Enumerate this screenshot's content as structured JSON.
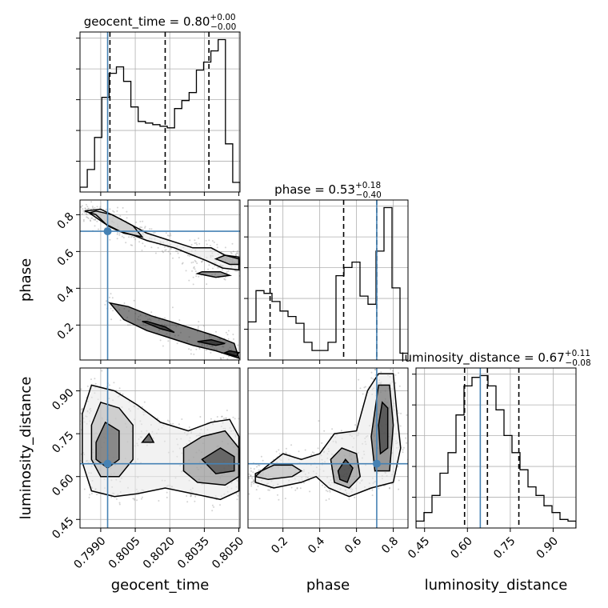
{
  "chart_data": {
    "type": "corner",
    "parameters": [
      "geocent_time",
      "phase",
      "luminosity_distance"
    ],
    "truth": {
      "geocent_time": 0.7993,
      "phase": 0.71,
      "luminosity_distance": 0.645
    },
    "truth_color": "#4682b4",
    "ranges": {
      "geocent_time": [
        0.7981,
        0.80505
      ],
      "phase": [
        0.01,
        0.88
      ],
      "luminosity_distance": [
        0.42,
        0.98
      ]
    },
    "ticks": {
      "geocent_time": {
        "values": [
          0.799,
          0.8005,
          0.802,
          0.8035,
          0.805
        ],
        "labels": [
          "0.7990",
          "0.8005",
          "0.8020",
          "0.8035",
          "0.8050"
        ]
      },
      "phase": {
        "values": [
          0.2,
          0.4,
          0.6,
          0.8
        ],
        "labels": [
          "0.2",
          "0.4",
          "0.6",
          "0.8"
        ]
      },
      "luminosity_distance": {
        "values": [
          0.45,
          0.6,
          0.75,
          0.9
        ],
        "labels": [
          "0.45",
          "0.60",
          "0.75",
          "0.90"
        ]
      }
    },
    "marginals": [
      {
        "parameter": "geocent_time",
        "title": {
          "text": "geocent_time = 0.80",
          "sup": "+0.00",
          "sub": "−0.00"
        },
        "quantiles": [
          0.7994,
          0.8018,
          0.8037
        ],
        "hist": [
          0.3,
          1.4,
          3.4,
          5.9,
          7.4,
          7.8,
          6.9,
          5.3,
          4.4,
          4.3,
          4.2,
          4.1,
          4.0,
          5.2,
          5.7,
          6.2,
          7.6,
          8.1,
          8.8,
          9.5,
          3.0,
          0.6
        ]
      },
      {
        "parameter": "phase",
        "title": {
          "text": "phase = 0.53",
          "sup": "+0.18",
          "sub": "−0.40"
        },
        "quantiles": [
          0.13,
          0.53,
          0.71
        ],
        "hist": [
          2.8,
          5.1,
          4.9,
          4.3,
          3.6,
          3.2,
          2.7,
          1.3,
          0.7,
          0.7,
          1.3,
          6.2,
          6.8,
          7.2,
          4.7,
          4.1,
          8.0,
          11.2,
          5.3,
          0.5
        ]
      },
      {
        "parameter": "luminosity_distance",
        "title": {
          "text": "luminosity_distance = 0.67",
          "sup": "+0.11",
          "sub": "−0.08"
        },
        "quantiles": [
          0.59,
          0.67,
          0.78
        ],
        "hist": [
          0.4,
          0.9,
          1.9,
          3.2,
          4.4,
          6.6,
          8.3,
          8.8,
          8.9,
          8.3,
          6.9,
          5.4,
          4.4,
          3.4,
          2.4,
          1.9,
          1.3,
          0.9,
          0.5,
          0.4
        ]
      }
    ],
    "joint": [
      {
        "x": "geocent_time",
        "y": "phase",
        "contours": [
          [
            [
              0.7983,
              0.82
            ],
            [
              0.7988,
              0.8
            ],
            [
              0.7993,
              0.74
            ],
            [
              0.7998,
              0.71
            ],
            [
              0.8004,
              0.69
            ],
            [
              0.801,
              0.66
            ],
            [
              0.8016,
              0.64
            ],
            [
              0.8022,
              0.62
            ],
            [
              0.803,
              0.58
            ],
            [
              0.8036,
              0.55
            ],
            [
              0.8043,
              0.51
            ],
            [
              0.805,
              0.5
            ],
            [
              0.805,
              0.56
            ],
            [
              0.8044,
              0.58
            ],
            [
              0.8038,
              0.62
            ],
            [
              0.803,
              0.62
            ],
            [
              0.802,
              0.66
            ],
            [
              0.801,
              0.7
            ],
            [
              0.7998,
              0.78
            ],
            [
              0.799,
              0.83
            ],
            [
              0.7983,
              0.82
            ]
          ],
          [
            [
              0.7985,
              0.81
            ],
            [
              0.7992,
              0.75
            ],
            [
              0.8,
              0.7
            ],
            [
              0.8008,
              0.68
            ],
            [
              0.8004,
              0.74
            ],
            [
              0.7995,
              0.8
            ],
            [
              0.7988,
              0.82
            ],
            [
              0.7985,
              0.81
            ]
          ],
          [
            [
              0.804,
              0.56
            ],
            [
              0.8046,
              0.53
            ],
            [
              0.805,
              0.53
            ],
            [
              0.805,
              0.57
            ],
            [
              0.8044,
              0.58
            ],
            [
              0.804,
              0.56
            ]
          ],
          [
            [
              0.8032,
              0.48
            ],
            [
              0.804,
              0.46
            ],
            [
              0.8046,
              0.47
            ],
            [
              0.8042,
              0.49
            ],
            [
              0.8034,
              0.49
            ],
            [
              0.8032,
              0.48
            ]
          ],
          [
            [
              0.7994,
              0.32
            ],
            [
              0.8002,
              0.3
            ],
            [
              0.8012,
              0.25
            ],
            [
              0.802,
              0.22
            ],
            [
              0.803,
              0.18
            ],
            [
              0.804,
              0.14
            ],
            [
              0.8048,
              0.1
            ],
            [
              0.805,
              0.02
            ],
            [
              0.804,
              0.06
            ],
            [
              0.803,
              0.09
            ],
            [
              0.802,
              0.13
            ],
            [
              0.801,
              0.17
            ],
            [
              0.8,
              0.23
            ],
            [
              0.7994,
              0.32
            ]
          ],
          [
            [
              0.8008,
              0.22
            ],
            [
              0.8016,
              0.18
            ],
            [
              0.8022,
              0.16
            ],
            [
              0.8018,
              0.19
            ],
            [
              0.801,
              0.22
            ],
            [
              0.8008,
              0.22
            ]
          ],
          [
            [
              0.8032,
              0.11
            ],
            [
              0.804,
              0.09
            ],
            [
              0.8044,
              0.1
            ],
            [
              0.8038,
              0.12
            ],
            [
              0.8032,
              0.11
            ]
          ],
          [
            [
              0.8044,
              0.05
            ],
            [
              0.8049,
              0.03
            ],
            [
              0.805,
              0.05
            ],
            [
              0.8046,
              0.06
            ],
            [
              0.8044,
              0.05
            ]
          ]
        ]
      },
      {
        "x": "geocent_time",
        "y": "luminosity_distance",
        "contours": [
          [
            [
              0.7982,
              0.82
            ],
            [
              0.7986,
              0.92
            ],
            [
              0.7996,
              0.9
            ],
            [
              0.8006,
              0.85
            ],
            [
              0.8016,
              0.79
            ],
            [
              0.8028,
              0.76
            ],
            [
              0.8038,
              0.79
            ],
            [
              0.8046,
              0.8
            ],
            [
              0.805,
              0.74
            ],
            [
              0.805,
              0.55
            ],
            [
              0.8042,
              0.52
            ],
            [
              0.803,
              0.54
            ],
            [
              0.8018,
              0.56
            ],
            [
              0.8006,
              0.54
            ],
            [
              0.7996,
              0.53
            ],
            [
              0.7986,
              0.55
            ],
            [
              0.7982,
              0.65
            ],
            [
              0.7982,
              0.82
            ]
          ],
          [
            [
              0.7986,
              0.78
            ],
            [
              0.799,
              0.86
            ],
            [
              0.7998,
              0.84
            ],
            [
              0.8004,
              0.78
            ],
            [
              0.8004,
              0.66
            ],
            [
              0.7998,
              0.6
            ],
            [
              0.799,
              0.6
            ],
            [
              0.7986,
              0.66
            ],
            [
              0.7986,
              0.78
            ]
          ],
          [
            [
              0.8026,
              0.7
            ],
            [
              0.8034,
              0.74
            ],
            [
              0.8044,
              0.76
            ],
            [
              0.805,
              0.7
            ],
            [
              0.805,
              0.6
            ],
            [
              0.8044,
              0.57
            ],
            [
              0.8032,
              0.58
            ],
            [
              0.8026,
              0.62
            ],
            [
              0.8026,
              0.7
            ]
          ],
          [
            [
              0.7988,
              0.72
            ],
            [
              0.7992,
              0.79
            ],
            [
              0.7998,
              0.76
            ],
            [
              0.7998,
              0.66
            ],
            [
              0.7993,
              0.63
            ],
            [
              0.7988,
              0.66
            ],
            [
              0.7988,
              0.72
            ]
          ],
          [
            [
              0.8034,
              0.66
            ],
            [
              0.8042,
              0.7
            ],
            [
              0.8048,
              0.67
            ],
            [
              0.8048,
              0.62
            ],
            [
              0.804,
              0.61
            ],
            [
              0.8034,
              0.66
            ]
          ],
          [
            [
              0.8008,
              0.72
            ],
            [
              0.8011,
              0.75
            ],
            [
              0.8013,
              0.72
            ],
            [
              0.8008,
              0.72
            ]
          ]
        ]
      },
      {
        "x": "phase",
        "y": "luminosity_distance",
        "contours": [
          [
            [
              0.05,
              0.6
            ],
            [
              0.1,
              0.63
            ],
            [
              0.2,
              0.68
            ],
            [
              0.3,
              0.66
            ],
            [
              0.4,
              0.68
            ],
            [
              0.48,
              0.75
            ],
            [
              0.6,
              0.76
            ],
            [
              0.66,
              0.9
            ],
            [
              0.72,
              0.96
            ],
            [
              0.8,
              0.96
            ],
            [
              0.82,
              0.82
            ],
            [
              0.84,
              0.7
            ],
            [
              0.8,
              0.58
            ],
            [
              0.68,
              0.56
            ],
            [
              0.56,
              0.53
            ],
            [
              0.45,
              0.56
            ],
            [
              0.38,
              0.6
            ],
            [
              0.3,
              0.58
            ],
            [
              0.15,
              0.56
            ],
            [
              0.05,
              0.58
            ],
            [
              0.05,
              0.6
            ]
          ],
          [
            [
              0.05,
              0.61
            ],
            [
              0.15,
              0.64
            ],
            [
              0.25,
              0.64
            ],
            [
              0.3,
              0.62
            ],
            [
              0.25,
              0.6
            ],
            [
              0.12,
              0.59
            ],
            [
              0.05,
              0.6
            ],
            [
              0.05,
              0.61
            ]
          ],
          [
            [
              0.46,
              0.66
            ],
            [
              0.52,
              0.7
            ],
            [
              0.6,
              0.68
            ],
            [
              0.62,
              0.6
            ],
            [
              0.56,
              0.56
            ],
            [
              0.48,
              0.58
            ],
            [
              0.46,
              0.66
            ]
          ],
          [
            [
              0.68,
              0.74
            ],
            [
              0.72,
              0.92
            ],
            [
              0.78,
              0.92
            ],
            [
              0.8,
              0.78
            ],
            [
              0.78,
              0.62
            ],
            [
              0.7,
              0.62
            ],
            [
              0.68,
              0.74
            ]
          ],
          [
            [
              0.72,
              0.78
            ],
            [
              0.74,
              0.86
            ],
            [
              0.77,
              0.84
            ],
            [
              0.77,
              0.7
            ],
            [
              0.73,
              0.68
            ],
            [
              0.72,
              0.78
            ]
          ],
          [
            [
              0.5,
              0.62
            ],
            [
              0.54,
              0.66
            ],
            [
              0.58,
              0.63
            ],
            [
              0.55,
              0.58
            ],
            [
              0.51,
              0.59
            ],
            [
              0.5,
              0.62
            ]
          ]
        ]
      }
    ],
    "grid": true
  }
}
